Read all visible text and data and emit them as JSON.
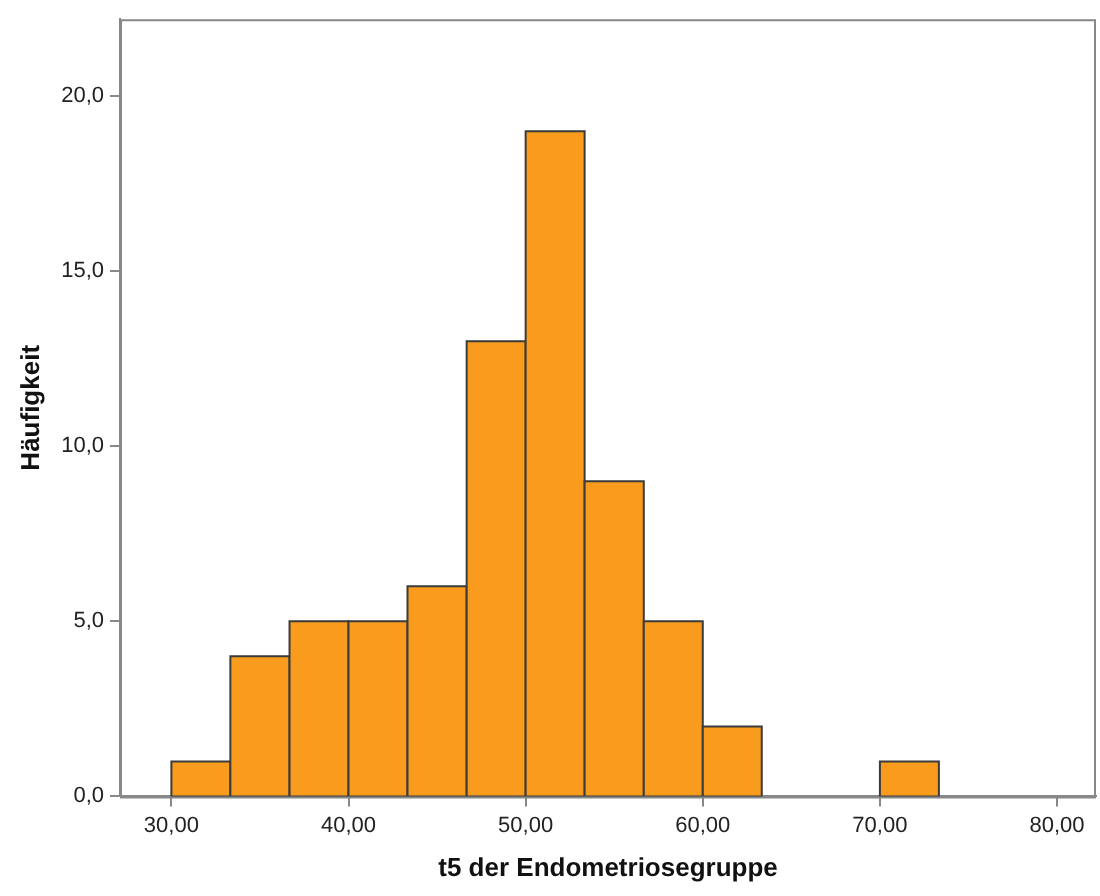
{
  "chart_data": {
    "type": "histogram",
    "xlabel": "t5 der Endometriosegruppe",
    "ylabel": "Häufigkeit",
    "bins": [
      30,
      33.33,
      36.67,
      40,
      43.33,
      46.67,
      50,
      53.33,
      56.67,
      60,
      63.33,
      66.67,
      70,
      73.33
    ],
    "values": [
      1,
      4,
      5,
      5,
      6,
      13,
      19,
      9,
      5,
      2,
      0,
      0,
      1
    ],
    "color": "#f99c1e",
    "xlim": [
      27.1,
      82.2
    ],
    "xticks": [
      {
        "value": 30,
        "label": "30,00"
      },
      {
        "value": 40,
        "label": "40,00"
      },
      {
        "value": 50,
        "label": "50,00"
      },
      {
        "value": 60,
        "label": "60,00"
      },
      {
        "value": 70,
        "label": "70,00"
      },
      {
        "value": 80,
        "label": "80,00"
      }
    ],
    "ylim": [
      0,
      22.2
    ],
    "yticks": [
      {
        "value": 0,
        "label": "0,0"
      },
      {
        "value": 5,
        "label": "5,0"
      },
      {
        "value": 10,
        "label": "10,0"
      },
      {
        "value": 15,
        "label": "15,0"
      },
      {
        "value": 20,
        "label": "20,0"
      }
    ],
    "grid": false,
    "legend": false
  }
}
